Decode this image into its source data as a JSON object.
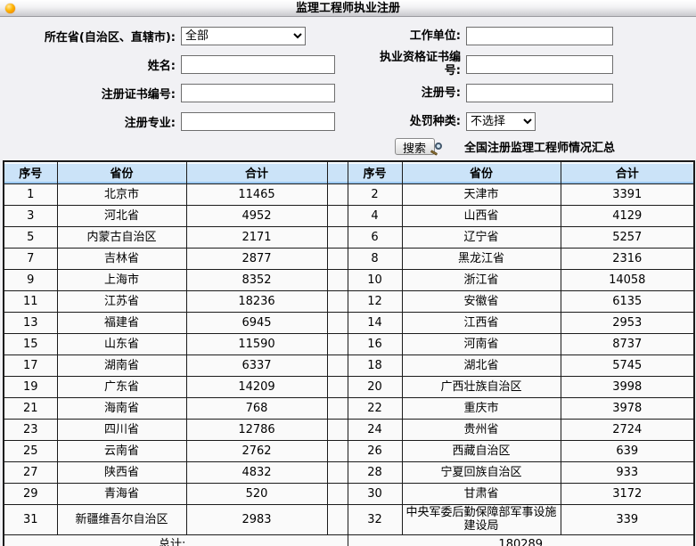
{
  "title_bar": {
    "title": "监理工程师执业注册"
  },
  "form": {
    "fields": [
      {
        "label": "所在省(自治区、直辖市):",
        "type": "select",
        "value": "全部"
      },
      {
        "label": "工作单位:",
        "type": "input",
        "value": ""
      },
      {
        "label": "姓名:",
        "type": "input",
        "value": ""
      },
      {
        "label": "执业资格证书编号:",
        "type": "input",
        "value": ""
      },
      {
        "label": "注册证书编号:",
        "type": "input",
        "value": ""
      },
      {
        "label": "注册号:",
        "type": "input",
        "value": ""
      },
      {
        "label": "注册专业:",
        "type": "input",
        "value": ""
      },
      {
        "label": "处罚种类:",
        "type": "select",
        "value": "不选择"
      }
    ],
    "search_button_label": "搜索",
    "summary_title": "全国注册监理工程师情况汇总"
  },
  "table": {
    "headers": [
      "序号",
      "省份",
      "合计",
      "序号",
      "省份",
      "合计"
    ],
    "rows": [
      [
        1,
        "北京市",
        11465,
        2,
        "天津市",
        3391
      ],
      [
        3,
        "河北省",
        4952,
        4,
        "山西省",
        4129
      ],
      [
        5,
        "内蒙古自治区",
        2171,
        6,
        "辽宁省",
        5257
      ],
      [
        7,
        "吉林省",
        2877,
        8,
        "黑龙江省",
        2316
      ],
      [
        9,
        "上海市",
        8352,
        10,
        "浙江省",
        14058
      ],
      [
        11,
        "江苏省",
        18236,
        12,
        "安徽省",
        6135
      ],
      [
        13,
        "福建省",
        6945,
        14,
        "江西省",
        2953
      ],
      [
        15,
        "山东省",
        11590,
        16,
        "河南省",
        8737
      ],
      [
        17,
        "湖南省",
        6337,
        18,
        "湖北省",
        5745
      ],
      [
        19,
        "广东省",
        14209,
        20,
        "广西壮族自治区",
        3998
      ],
      [
        21,
        "海南省",
        768,
        22,
        "重庆市",
        3978
      ],
      [
        23,
        "四川省",
        12786,
        24,
        "贵州省",
        2724
      ],
      [
        25,
        "云南省",
        2762,
        26,
        "西藏自治区",
        639
      ],
      [
        27,
        "陕西省",
        4832,
        28,
        "宁夏回族自治区",
        933
      ],
      [
        29,
        "青海省",
        520,
        30,
        "甘肃省",
        3172
      ],
      [
        31,
        "新疆维吾尔自治区",
        2983,
        32,
        "中央军委后勤保障部军事设施建设局",
        339
      ]
    ],
    "total_label": "总计:",
    "total_value": "180289"
  },
  "colors": {
    "header_bg": "#cbe3f8",
    "header_accent": "#9cc9f2",
    "table_border": "#1b1b1b",
    "titlebar_gradient_bottom": "#c9c9cd",
    "orb_orange": "#ff9c00",
    "row_bg": "#fafafa"
  }
}
